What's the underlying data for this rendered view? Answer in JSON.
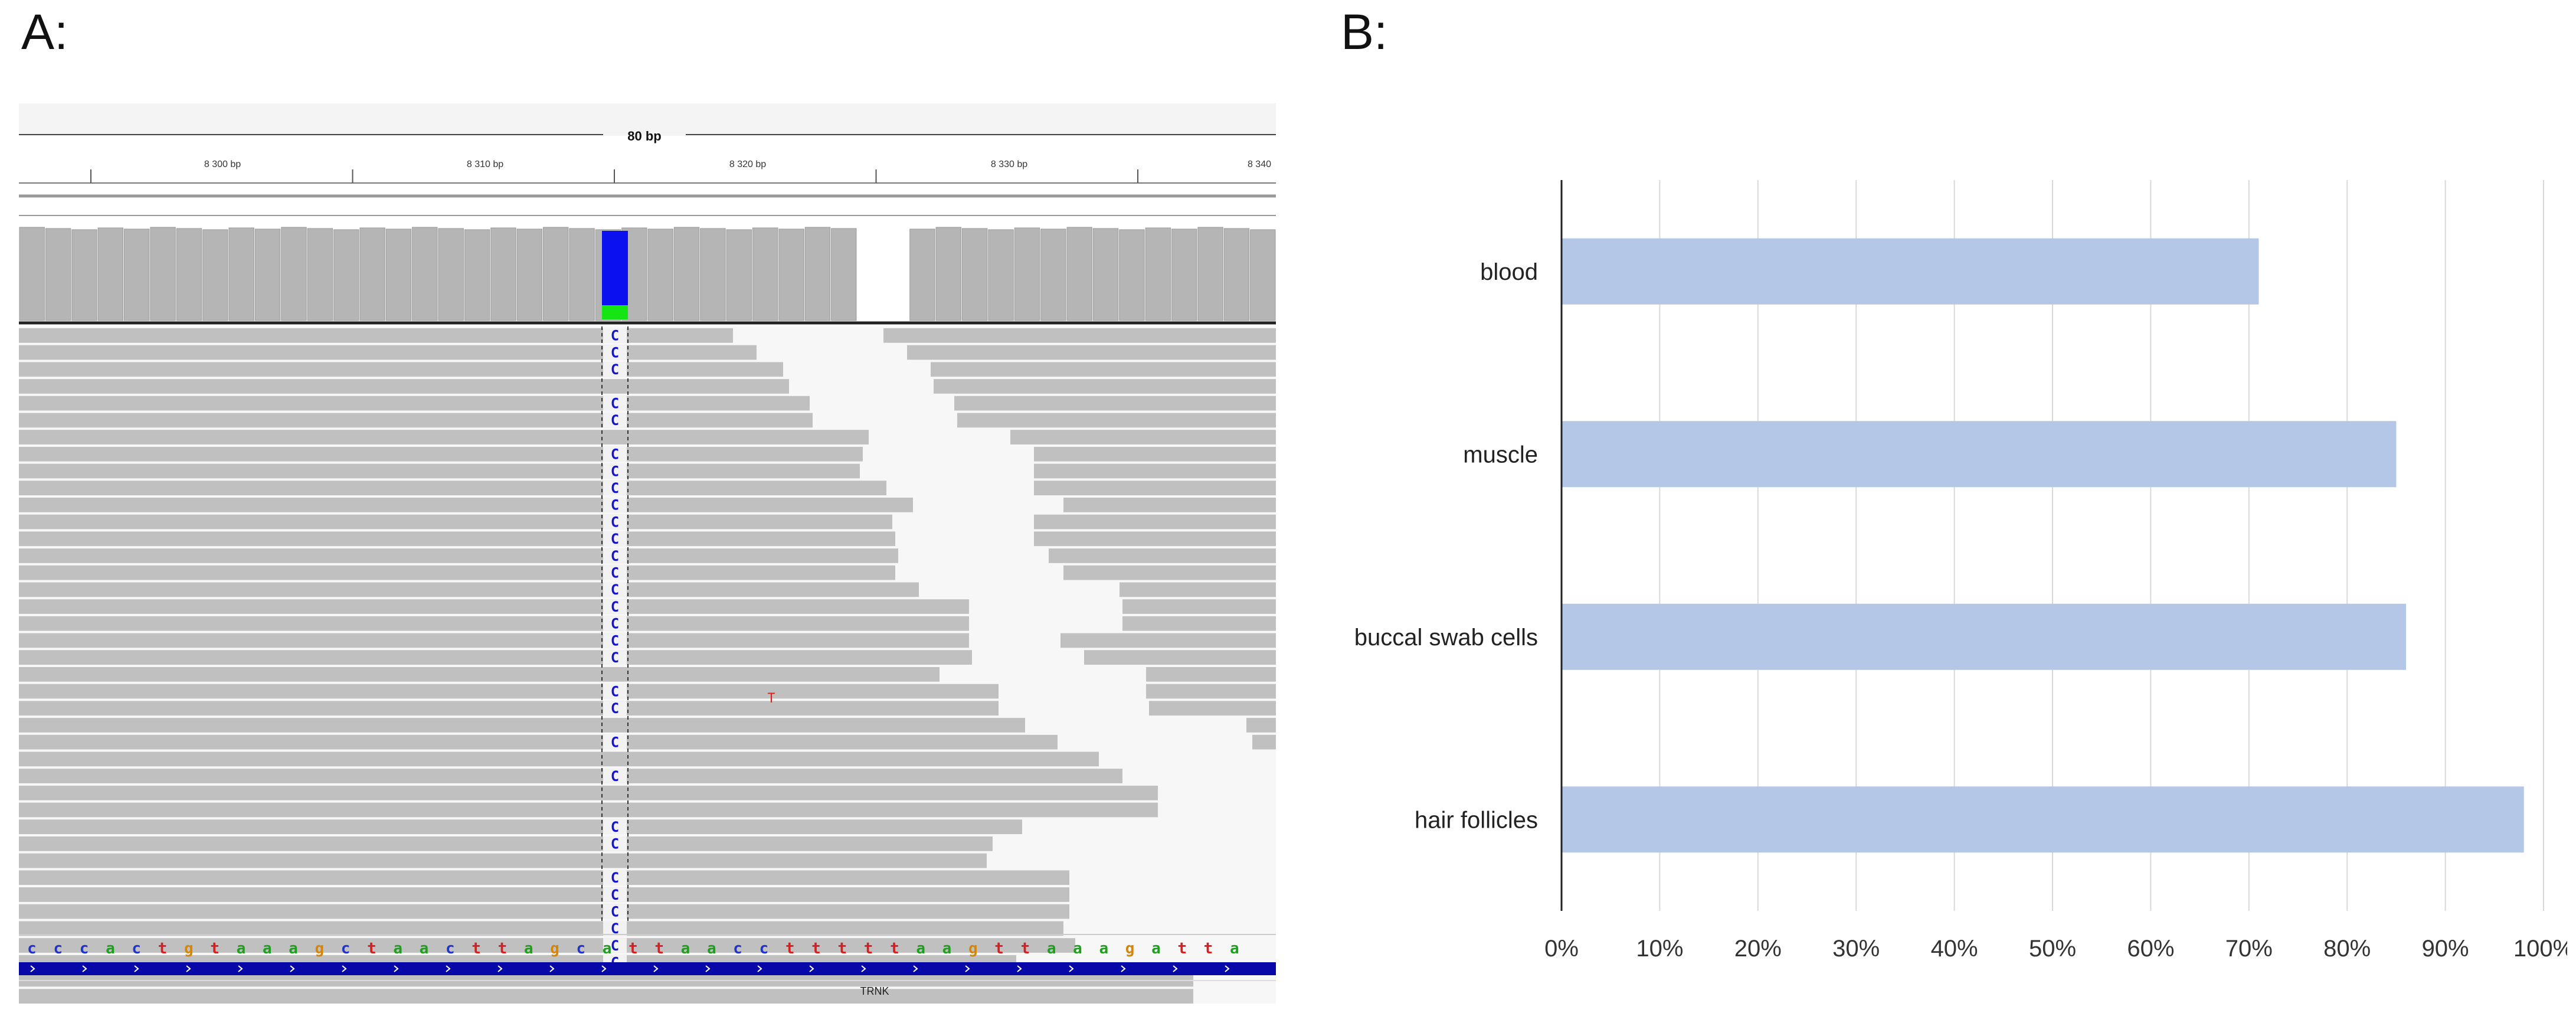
{
  "panels": {
    "a_label": "A:",
    "b_label": "B:"
  },
  "igv": {
    "span_label": "80 bp",
    "ruler_ticks": [
      "8 300 bp",
      "8 310 bp",
      "8 320 bp",
      "8 330 bp",
      "8 340"
    ],
    "variant_base": "C",
    "mismatch_base": "T",
    "reference_sequence": "cccactgtaaagctaacttagcattaacctttttaagttaaagatta ag",
    "gene_label": "TRNK",
    "colors": {
      "read": "#c0c0c0",
      "coverage": "#b5b5b5",
      "coverage_variant": "#0a10ee",
      "coverage_ref": "#15e415",
      "gene_bar": "#0808a8",
      "variant_text": "#1515cc",
      "mismatch_text": "#e02020",
      "base_a": "#1f9e1f",
      "base_c": "#2233cc",
      "base_g": "#d4860b",
      "base_t": "#d42020"
    }
  },
  "chart_data": {
    "type": "bar",
    "orientation": "horizontal",
    "categories": [
      "blood",
      "muscle",
      "buccal swab cells",
      "hair follicles"
    ],
    "values": [
      71,
      85,
      86,
      98
    ],
    "xlim": [
      0,
      100
    ],
    "xticks": [
      "0%",
      "10%",
      "20%",
      "30%",
      "40%",
      "50%",
      "60%",
      "70%",
      "80%",
      "90%",
      "100%"
    ],
    "grid": true,
    "bar_color": "#b4c7e7",
    "title": "",
    "xlabel": "",
    "ylabel": ""
  }
}
